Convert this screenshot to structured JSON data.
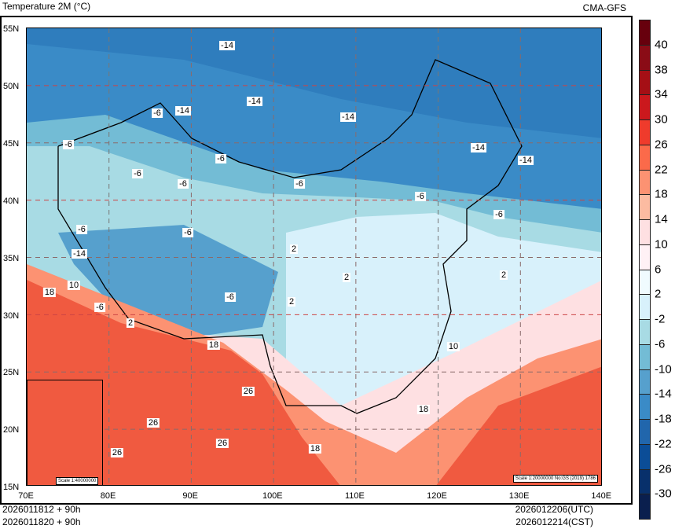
{
  "title": "Temperature  2M (°C)",
  "model": "CMA-GFS",
  "lat_labels": [
    "55N",
    "50N",
    "45N",
    "40N",
    "35N",
    "30N",
    "25N",
    "20N",
    "15N"
  ],
  "lon_labels": [
    "70E",
    "80E",
    "90E",
    "100E",
    "110E",
    "120E",
    "130E",
    "140E"
  ],
  "contour_labels": [
    "-14",
    "-14",
    "-14",
    "-6",
    "-14",
    "-6",
    "-6",
    "-6",
    "-6",
    "-6",
    "-6",
    "-14",
    "-14",
    "-6",
    "-6",
    "-14",
    "-6",
    "18",
    "10",
    "-6",
    "-6",
    "2",
    "2",
    "2",
    "2",
    "18",
    "10",
    "26",
    "26",
    "26",
    "26",
    "18",
    "18",
    "2"
  ],
  "inset_scale": "Scale 1:40000000",
  "map_note": "Scale 1:20000000 No:GS (2019) 1786",
  "footer": {
    "init_utc": "2026011812 + 90h",
    "init_cst": "2026011820 + 90h",
    "valid_utc": "2026012206(UTC)",
    "valid_cst": "2026012214(CST)"
  },
  "colorbar": {
    "labels": [
      "40",
      "38",
      "34",
      "30",
      "26",
      "22",
      "18",
      "14",
      "10",
      "6",
      "2",
      "-2",
      "-6",
      "-10",
      "-14",
      "-18",
      "-22",
      "-26",
      "-30"
    ],
    "colors": [
      "#67000d",
      "#8a0c16",
      "#a50f15",
      "#cb181d",
      "#ef3b2c",
      "#fb6a4a",
      "#fc9272",
      "#fcbba1",
      "#fee0e2",
      "#fff1f5",
      "#f0fbfe",
      "#d8f1fb",
      "#a8dbe4",
      "#73bcd5",
      "#56a0cd",
      "#3a8bc7",
      "#2166ac",
      "#0b4d97",
      "#08306b",
      "#0a1f4e"
    ]
  }
}
